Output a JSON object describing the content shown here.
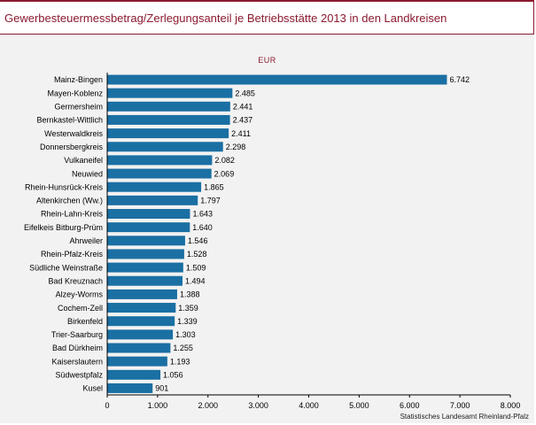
{
  "header": {
    "title": "Gewerbesteuermessbetrag/Zerlegungsanteil je Betriebsstätte 2013 in den Landkreisen"
  },
  "source_note": "Statistisches Landesamt Rheinland-Pfalz",
  "colors": {
    "accent": "#8b1a2f",
    "bar": "#1a6fa3",
    "panel": "#f2f2f2"
  },
  "chart_data": {
    "type": "bar",
    "orientation": "horizontal",
    "unit_label": "EUR",
    "categories": [
      "Mainz-Bingen",
      "Mayen-Koblenz",
      "Germersheim",
      "Bernkastel-Wittlich",
      "Westerwaldkreis",
      "Donnersbergkreis",
      "Vulkaneifel",
      "Neuwied",
      "Rhein-Hunsrück-Kreis",
      "Altenkirchen (Ww.)",
      "Rhein-Lahn-Kreis",
      "Eifelkeis Bitburg-Prüm",
      "Ahrweiler",
      "Rhein-Pfalz-Kreis",
      "Südliche Weinstraße",
      "Bad Kreuznach",
      "Alzey-Worms",
      "Cochem-Zell",
      "Birkenfeld",
      "Trier-Saarburg",
      "Bad Dürkheim",
      "Kaiserslautern",
      "Südwestpfalz",
      "Kusel"
    ],
    "values": [
      6742,
      2485,
      2441,
      2437,
      2411,
      2298,
      2082,
      2069,
      1865,
      1797,
      1643,
      1640,
      1546,
      1528,
      1509,
      1494,
      1388,
      1359,
      1339,
      1303,
      1255,
      1193,
      1056,
      901
    ],
    "value_labels": [
      "6.742",
      "2.485",
      "2.441",
      "2.437",
      "2.411",
      "2.298",
      "2.082",
      "2.069",
      "1.865",
      "1.797",
      "1.643",
      "1.640",
      "1.546",
      "1.528",
      "1.509",
      "1.494",
      "1.388",
      "1.359",
      "1.339",
      "1.303",
      "1.255",
      "1.193",
      "1.056",
      "901"
    ],
    "x_ticks": [
      0,
      1000,
      2000,
      3000,
      4000,
      5000,
      6000,
      7000,
      8000
    ],
    "x_tick_labels": [
      "0",
      "1.000",
      "2.000",
      "3.000",
      "4.000",
      "5.000",
      "6.000",
      "7.000",
      "8.000"
    ],
    "xlim": [
      0,
      8000
    ],
    "grid": false,
    "legend": "none"
  }
}
